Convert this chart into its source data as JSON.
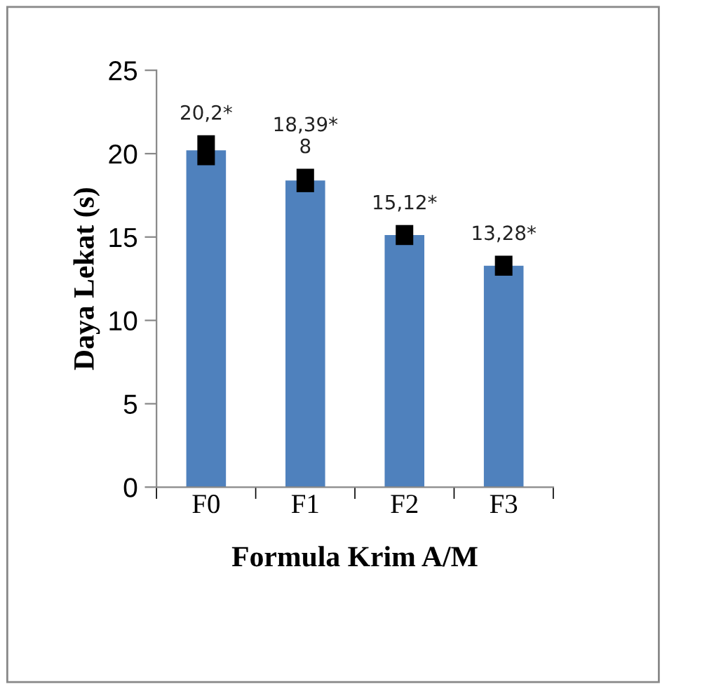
{
  "chart_data": {
    "type": "bar",
    "xlabel": "Formula Krim A/M",
    "ylabel": "Daya Lekat (s)",
    "categories": [
      "F0",
      "F1",
      "F2",
      "F3"
    ],
    "values": [
      20.2,
      18.39,
      15.12,
      13.28
    ],
    "errors": [
      0.9,
      0.7,
      0.6,
      0.6
    ],
    "value_labels": [
      "20,2*",
      "18,39*\n8",
      "15,12*",
      "13,28*"
    ],
    "color": "#4f81bd",
    "ylim": [
      0,
      25
    ],
    "yticks": [
      0,
      5,
      10,
      15,
      20,
      25
    ],
    "grid": false,
    "legend": false
  }
}
